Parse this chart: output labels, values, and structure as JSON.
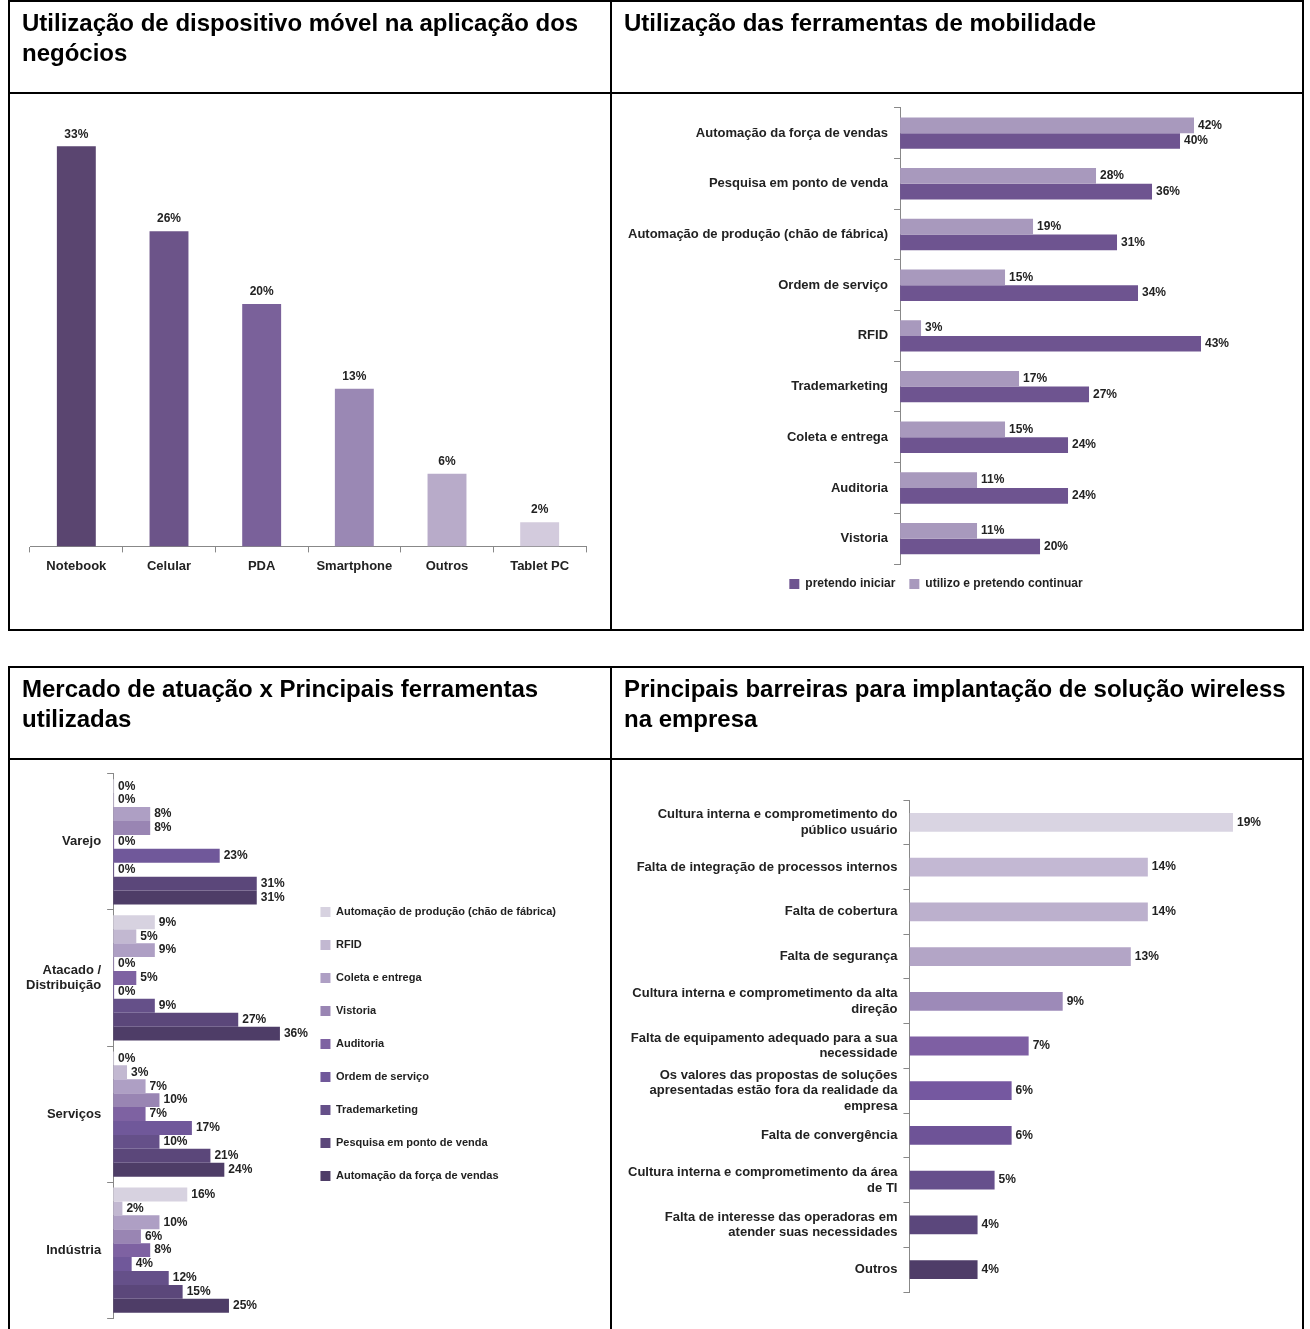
{
  "chart_data": [
    {
      "type": "bar",
      "title": "Utilização de dispositivo móvel na aplicação dos negócios",
      "categories": [
        "Notebook",
        "Celular",
        "PDA",
        "Smartphone",
        "Outros",
        "Tablet PC"
      ],
      "values": [
        33,
        26,
        20,
        13,
        6,
        2
      ],
      "colors": [
        "#5a4570",
        "#6c5489",
        "#7a619a",
        "#9a88b4",
        "#b8abc9",
        "#d3cbdd"
      ],
      "value_labels": [
        "33%",
        "26%",
        "20%",
        "13%",
        "6%",
        "2%"
      ]
    },
    {
      "type": "bar",
      "title": "Utilização das ferramentas de mobilidade",
      "orientation": "horizontal",
      "legend": "bottom",
      "categories": [
        "Automação da força de vendas",
        "Pesquisa em ponto de venda",
        "Automação de produção (chão de fábrica)",
        "Ordem de serviço",
        "RFID",
        "Trademarketing",
        "Coleta e entrega",
        "Auditoria",
        "Vistoria"
      ],
      "series": [
        {
          "name": "utilizo e pretendo continuar",
          "color": "#a899bd",
          "values": [
            42,
            28,
            19,
            15,
            3,
            17,
            15,
            11,
            11
          ],
          "value_labels": [
            "42%",
            "28%",
            "19%",
            "15%",
            "3%",
            "17%",
            "15%",
            "11%",
            "11%"
          ]
        },
        {
          "name": "pretendo iniciar",
          "color": "#6e5490",
          "values": [
            40,
            36,
            31,
            34,
            43,
            27,
            24,
            24,
            20
          ],
          "value_labels": [
            "40%",
            "36%",
            "31%",
            "34%",
            "43%",
            "27%",
            "24%",
            "24%",
            "20%"
          ]
        }
      ]
    },
    {
      "type": "bar",
      "title": "Mercado de atuação x Principais ferramentas utilizadas",
      "orientation": "horizontal",
      "legend": "right",
      "categories": [
        "Varejo",
        "Atacado / Distribuição",
        "Serviços",
        "Indústria"
      ],
      "series": [
        {
          "name": "Automação de produção (chão de fábrica)",
          "color": "#d7d2e0",
          "values": [
            0,
            9,
            0,
            16
          ],
          "value_labels": [
            "0%",
            "9%",
            "0%",
            "16%"
          ]
        },
        {
          "name": "RFID",
          "color": "#c2b8d1",
          "values": [
            0,
            5,
            3,
            2
          ],
          "value_labels": [
            "0%",
            "5%",
            "3%",
            "2%"
          ]
        },
        {
          "name": "Coleta e entrega",
          "color": "#ae9fc4",
          "values": [
            8,
            9,
            7,
            10
          ],
          "value_labels": [
            "8%",
            "9%",
            "7%",
            "10%"
          ]
        },
        {
          "name": "Vistoria",
          "color": "#9985b3",
          "values": [
            8,
            0,
            10,
            6
          ],
          "value_labels": [
            "8%",
            "0%",
            "10%",
            "6%"
          ]
        },
        {
          "name": "Auditoria",
          "color": "#7e62a2",
          "values": [
            0,
            5,
            7,
            8
          ],
          "value_labels": [
            "0%",
            "5%",
            "7%",
            "8%"
          ]
        },
        {
          "name": "Ordem de serviço",
          "color": "#70589a",
          "values": [
            23,
            0,
            17,
            4
          ],
          "value_labels": [
            "23%",
            "0%",
            "17%",
            "4%"
          ]
        },
        {
          "name": "Trademarketing",
          "color": "#655089",
          "values": [
            0,
            9,
            10,
            12
          ],
          "value_labels": [
            "0%",
            "9%",
            "10%",
            "12%"
          ]
        },
        {
          "name": "Pesquisa em ponto de venda",
          "color": "#5b477a",
          "values": [
            31,
            27,
            21,
            15
          ],
          "value_labels": [
            "31%",
            "27%",
            "21%",
            "15%"
          ]
        },
        {
          "name": "Automação da força de vendas",
          "color": "#4e3d67",
          "values": [
            31,
            36,
            24,
            25
          ],
          "value_labels": [
            "31%",
            "36%",
            "24%",
            "25%"
          ]
        }
      ]
    },
    {
      "type": "bar",
      "title": "Principais barreiras para implantação de solução wireless na empresa",
      "orientation": "horizontal",
      "categories": [
        "Cultura interna e comprometimento do público usuário",
        "Falta de integração de processos internos",
        "Falta de cobertura",
        "Falta de segurança",
        "Cultura interna e comprometimento da alta direção",
        "Falta de equipamento adequado para a sua necessidade",
        "Os valores das propostas de soluções apresentadas estão fora da realidade da empresa",
        "Falta de convergência",
        "Cultura interna e comprometimento da área de TI",
        "Falta de interesse das operadoras em atender suas necessidades",
        "Outros"
      ],
      "values": [
        19,
        14,
        14,
        13,
        9,
        7,
        6,
        6,
        5,
        4,
        4
      ],
      "colors": [
        "#d9d4e2",
        "#c3b8d3",
        "#bcb0cd",
        "#b3a5c6",
        "#9d8ab8",
        "#7e5fa3",
        "#7558a0",
        "#6e5397",
        "#664f8c",
        "#5b477c",
        "#4f3d68"
      ],
      "value_labels": [
        "19%",
        "14%",
        "14%",
        "13%",
        "9%",
        "7%",
        "6%",
        "6%",
        "5%",
        "4%",
        "4%"
      ]
    }
  ]
}
